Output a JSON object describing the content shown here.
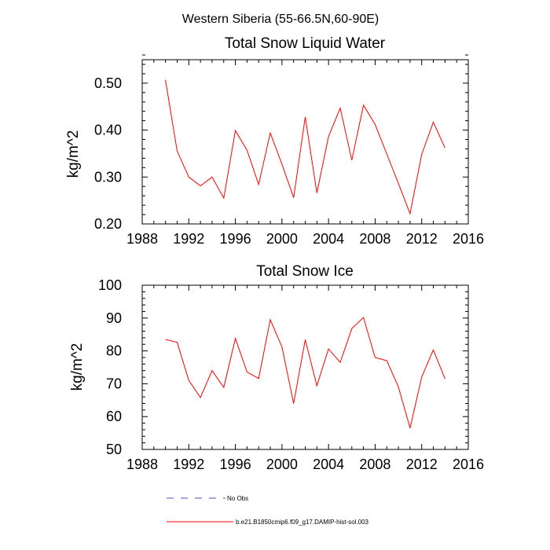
{
  "figure_title": "Western Siberia (55-66.5N,60-90E)",
  "colors": {
    "model": "#ff0000",
    "obs": "#4b4bc8",
    "axes": "#000000"
  },
  "legend": [
    {
      "label": "No Obs",
      "style": "dashed",
      "color": "#4b4bc8"
    },
    {
      "label": "b.e21.B1850cmip6.f09_g17.DAMIP-hist-sol.003",
      "style": "solid",
      "color": "#ff0000"
    }
  ],
  "chart_data": [
    {
      "type": "line",
      "title": "Total Snow Liquid Water",
      "ylabel": "kg/m^2",
      "xlim": [
        1988,
        2016
      ],
      "ylim": [
        0.2,
        0.55
      ],
      "xticks": [
        1988,
        1992,
        1996,
        2000,
        2004,
        2008,
        2012,
        2016
      ],
      "yticks": [
        0.2,
        0.3,
        0.4,
        0.5
      ],
      "yticklabels": [
        "0.20",
        "0.30",
        "0.40",
        "0.50"
      ],
      "series": [
        {
          "name": "b.e21.B1850cmip6.f09_g17.DAMIP-hist-sol.003",
          "x": [
            1990,
            1991,
            1992,
            1993,
            1994,
            1995,
            1996,
            1997,
            1998,
            1999,
            2000,
            2001,
            2002,
            2003,
            2004,
            2005,
            2006,
            2007,
            2008,
            2009,
            2010,
            2011,
            2012,
            2013,
            2014
          ],
          "y": [
            0.507,
            0.355,
            0.3,
            0.281,
            0.3,
            0.255,
            0.399,
            0.357,
            0.284,
            0.394,
            0.327,
            0.256,
            0.428,
            0.266,
            0.386,
            0.447,
            0.336,
            0.453,
            0.412,
            0.349,
            0.286,
            0.222,
            0.348,
            0.417,
            0.362
          ]
        }
      ]
    },
    {
      "type": "line",
      "title": "Total Snow Ice",
      "ylabel": "kg/m^2",
      "xlim": [
        1988,
        2016
      ],
      "ylim": [
        50,
        100
      ],
      "xticks": [
        1988,
        1992,
        1996,
        2000,
        2004,
        2008,
        2012,
        2016
      ],
      "yticks": [
        50,
        60,
        70,
        80,
        90,
        100
      ],
      "yticklabels": [
        "50",
        "60",
        "70",
        "80",
        "90",
        "100"
      ],
      "series": [
        {
          "name": "b.e21.B1850cmip6.f09_g17.DAMIP-hist-sol.003",
          "x": [
            1990,
            1991,
            1992,
            1993,
            1994,
            1995,
            1996,
            1997,
            1998,
            1999,
            2000,
            2001,
            2002,
            2003,
            2004,
            2005,
            2006,
            2007,
            2008,
            2009,
            2010,
            2011,
            2012,
            2013,
            2014
          ],
          "y": [
            83.5,
            82.6,
            71.0,
            65.8,
            74.0,
            68.9,
            83.8,
            73.6,
            71.6,
            89.5,
            81.2,
            64.0,
            83.4,
            69.4,
            80.6,
            76.5,
            86.8,
            90.2,
            78.0,
            77.0,
            69.0,
            56.5,
            72.0,
            80.3,
            71.5
          ]
        }
      ]
    }
  ]
}
